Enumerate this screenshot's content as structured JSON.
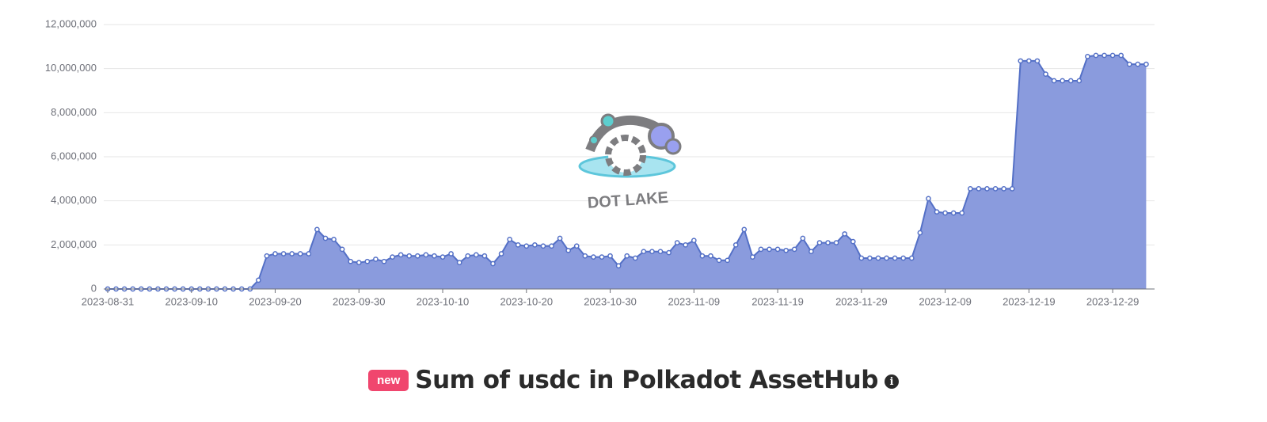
{
  "chart_data": {
    "type": "area",
    "title": "Sum of usdc in Polkadot AssetHub",
    "badge": "new",
    "watermark": "DOT LAKE",
    "color": "#5470c6",
    "fill_color": "#8a9bdd",
    "grid": true,
    "x": [
      "2023-08-31",
      "2023-09-01",
      "2023-09-02",
      "2023-09-03",
      "2023-09-04",
      "2023-09-05",
      "2023-09-06",
      "2023-09-07",
      "2023-09-08",
      "2023-09-09",
      "2023-09-10",
      "2023-09-11",
      "2023-09-12",
      "2023-09-13",
      "2023-09-14",
      "2023-09-15",
      "2023-09-16",
      "2023-09-17",
      "2023-09-18",
      "2023-09-19",
      "2023-09-20",
      "2023-09-21",
      "2023-09-22",
      "2023-09-23",
      "2023-09-24",
      "2023-09-25",
      "2023-09-26",
      "2023-09-27",
      "2023-09-28",
      "2023-09-29",
      "2023-09-30",
      "2023-10-01",
      "2023-10-02",
      "2023-10-03",
      "2023-10-04",
      "2023-10-05",
      "2023-10-06",
      "2023-10-07",
      "2023-10-08",
      "2023-10-09",
      "2023-10-10",
      "2023-10-11",
      "2023-10-12",
      "2023-10-13",
      "2023-10-14",
      "2023-10-15",
      "2023-10-16",
      "2023-10-17",
      "2023-10-18",
      "2023-10-19",
      "2023-10-20",
      "2023-10-21",
      "2023-10-22",
      "2023-10-23",
      "2023-10-24",
      "2023-10-25",
      "2023-10-26",
      "2023-10-27",
      "2023-10-28",
      "2023-10-29",
      "2023-10-30",
      "2023-10-31",
      "2023-11-01",
      "2023-11-02",
      "2023-11-03",
      "2023-11-04",
      "2023-11-05",
      "2023-11-06",
      "2023-11-07",
      "2023-11-08",
      "2023-11-09",
      "2023-11-10",
      "2023-11-11",
      "2023-11-12",
      "2023-11-13",
      "2023-11-14",
      "2023-11-15",
      "2023-11-16",
      "2023-11-17",
      "2023-11-18",
      "2023-11-19",
      "2023-11-20",
      "2023-11-21",
      "2023-11-22",
      "2023-11-23",
      "2023-11-24",
      "2023-11-25",
      "2023-11-26",
      "2023-11-27",
      "2023-11-28",
      "2023-11-29",
      "2023-11-30",
      "2023-12-01",
      "2023-12-02",
      "2023-12-03",
      "2023-12-04",
      "2023-12-05",
      "2023-12-06",
      "2023-12-07",
      "2023-12-08",
      "2023-12-09",
      "2023-12-10",
      "2023-12-11",
      "2023-12-12",
      "2023-12-13",
      "2023-12-14",
      "2023-12-15",
      "2023-12-16",
      "2023-12-17",
      "2023-12-18",
      "2023-12-19",
      "2023-12-20",
      "2023-12-21",
      "2023-12-22",
      "2023-12-23",
      "2023-12-24",
      "2023-12-25",
      "2023-12-26",
      "2023-12-27",
      "2023-12-28",
      "2023-12-29",
      "2023-12-30",
      "2023-12-31",
      "2024-01-01",
      "2024-01-02"
    ],
    "values": [
      0,
      0,
      0,
      0,
      0,
      0,
      0,
      0,
      0,
      0,
      0,
      0,
      0,
      0,
      0,
      0,
      0,
      0,
      400000,
      1500000,
      1600000,
      1600000,
      1600000,
      1600000,
      1600000,
      2700000,
      2300000,
      2250000,
      1800000,
      1250000,
      1200000,
      1250000,
      1350000,
      1250000,
      1450000,
      1550000,
      1500000,
      1500000,
      1550000,
      1500000,
      1450000,
      1600000,
      1200000,
      1500000,
      1550000,
      1500000,
      1150000,
      1600000,
      2250000,
      2000000,
      1950000,
      2000000,
      1950000,
      1950000,
      2300000,
      1750000,
      1950000,
      1500000,
      1450000,
      1450000,
      1500000,
      1050000,
      1500000,
      1400000,
      1700000,
      1700000,
      1700000,
      1650000,
      2100000,
      2000000,
      2200000,
      1500000,
      1500000,
      1300000,
      1300000,
      2000000,
      2700000,
      1450000,
      1800000,
      1800000,
      1800000,
      1750000,
      1800000,
      2300000,
      1700000,
      2100000,
      2100000,
      2100000,
      2500000,
      2150000,
      1400000,
      1400000,
      1400000,
      1400000,
      1400000,
      1400000,
      1400000,
      2550000,
      4100000,
      3500000,
      3450000,
      3450000,
      3450000,
      4550000,
      4550000,
      4550000,
      4550000,
      4550000,
      4550000,
      10350000,
      10350000,
      10350000,
      9750000,
      9450000,
      9450000,
      9450000,
      9450000,
      10550000,
      10600000,
      10600000,
      10600000,
      10600000,
      10200000,
      10200000,
      10200000
    ],
    "xlim": [
      "2023-08-31",
      "2024-01-03"
    ],
    "xticks": [
      "2023-08-31",
      "2023-09-10",
      "2023-09-20",
      "2023-09-30",
      "2023-10-10",
      "2023-10-20",
      "2023-10-30",
      "2023-11-09",
      "2023-11-19",
      "2023-11-29",
      "2023-12-09",
      "2023-12-19",
      "2023-12-29"
    ],
    "ylim": [
      0,
      12000000
    ],
    "yticks": [
      0,
      {
        "value": 2000000,
        "label": "2,000,000"
      },
      {
        "value": 4000000,
        "label": "4,000,000"
      },
      {
        "value": 6000000,
        "label": "6,000,000"
      },
      {
        "value": 8000000,
        "label": "8,000,000"
      },
      {
        "value": 10000000,
        "label": "10,000,000"
      },
      {
        "value": 12000000,
        "label": "12,000,000"
      }
    ]
  }
}
